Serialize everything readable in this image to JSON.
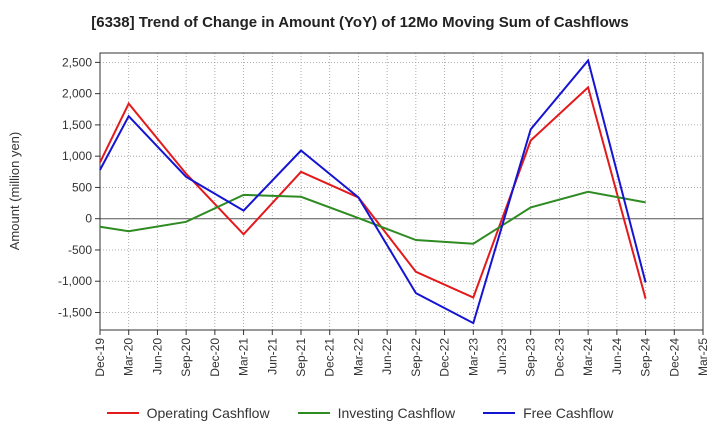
{
  "chart_data": {
    "type": "line",
    "title": "[6338]  Trend of Change in Amount (YoY) of 12Mo Moving Sum of Cashflows",
    "xlabel": "",
    "ylabel": "Amount (million yen)",
    "ylim": [
      -1780,
      2650
    ],
    "yticks": [
      -1500,
      -1000,
      -500,
      0,
      500,
      1000,
      1500,
      2000,
      2500
    ],
    "ytick_labels": [
      "-1,500",
      "-1,000",
      "-500",
      "0",
      "500",
      "1,000",
      "1,500",
      "2,000",
      "2,500"
    ],
    "categories": [
      "Dec-19",
      "Mar-20",
      "Jun-20",
      "Sep-20",
      "Dec-20",
      "Mar-21",
      "Jun-21",
      "Sep-21",
      "Dec-21",
      "Mar-22",
      "Jun-22",
      "Sep-22",
      "Dec-22",
      "Mar-23",
      "Jun-23",
      "Sep-23",
      "Dec-23",
      "Mar-24",
      "Jun-24",
      "Sep-24",
      "Dec-24",
      "Mar-25"
    ],
    "grid": true,
    "legend_position": "bottom",
    "series": [
      {
        "name": "Operating Cashflow",
        "color": "#e31a1c",
        "values": [
          900,
          1840,
          null,
          720,
          null,
          -250,
          null,
          750,
          null,
          340,
          null,
          -850,
          null,
          -1260,
          null,
          1250,
          null,
          2100,
          null,
          -1280,
          null,
          null
        ]
      },
      {
        "name": "Investing Cashflow",
        "color": "#2e8b22",
        "values": [
          -130,
          -200,
          null,
          -50,
          null,
          380,
          null,
          350,
          null,
          10,
          null,
          -340,
          null,
          -400,
          null,
          180,
          null,
          430,
          null,
          260,
          null,
          null
        ]
      },
      {
        "name": "Free Cashflow",
        "color": "#1414d2",
        "values": [
          780,
          1640,
          null,
          670,
          null,
          130,
          null,
          1090,
          null,
          340,
          null,
          -1190,
          null,
          -1670,
          null,
          1430,
          null,
          2530,
          null,
          -1020,
          null,
          null
        ]
      }
    ]
  }
}
